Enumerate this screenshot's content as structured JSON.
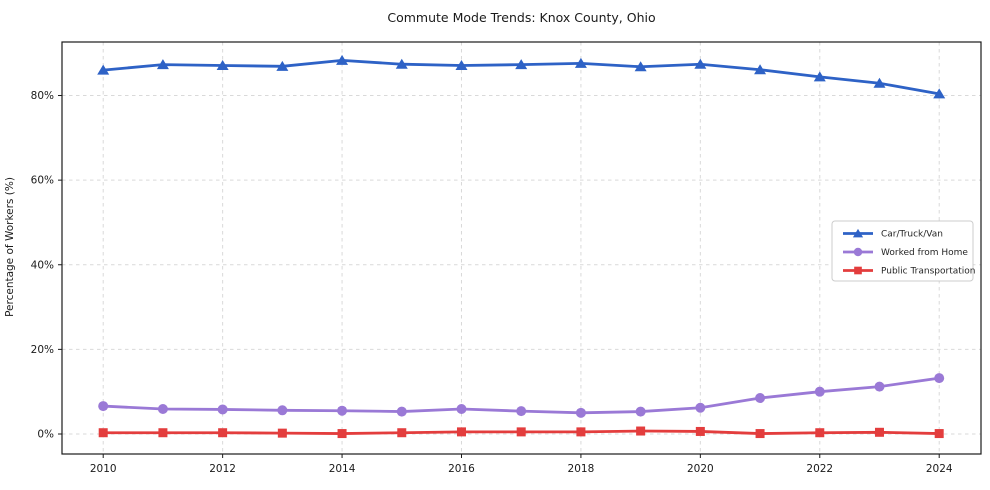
{
  "chart_data": {
    "type": "line",
    "title": "Commute Mode Trends: Knox County, Ohio",
    "xlabel": "",
    "ylabel": "Percentage of Workers (%)",
    "x": [
      2010,
      2011,
      2012,
      2013,
      2014,
      2015,
      2016,
      2017,
      2018,
      2019,
      2020,
      2021,
      2022,
      2023,
      2024
    ],
    "series": [
      {
        "name": "Car/Truck/Van",
        "color": "#2e62c6",
        "marker": "triangle",
        "values": [
          86.0,
          87.3,
          87.1,
          86.9,
          88.3,
          87.4,
          87.1,
          87.3,
          87.6,
          86.8,
          87.4,
          86.1,
          84.4,
          82.9,
          80.4
        ]
      },
      {
        "name": "Worked from Home",
        "color": "#9a79d6",
        "marker": "circle",
        "values": [
          6.6,
          5.9,
          5.8,
          5.6,
          5.5,
          5.3,
          5.9,
          5.4,
          5.0,
          5.3,
          6.2,
          8.5,
          10.0,
          11.2,
          13.2
        ]
      },
      {
        "name": "Public Transportation",
        "color": "#e33d3d",
        "marker": "square",
        "values": [
          0.3,
          0.3,
          0.3,
          0.2,
          0.1,
          0.3,
          0.5,
          0.5,
          0.5,
          0.7,
          0.6,
          0.1,
          0.3,
          0.4,
          0.1
        ]
      }
    ],
    "xticks": {
      "values": [
        2010,
        2012,
        2014,
        2016,
        2018,
        2020,
        2022,
        2024
      ],
      "labels": [
        "2010",
        "2012",
        "2014",
        "2016",
        "2018",
        "2020",
        "2022",
        "2024"
      ]
    },
    "yticks": {
      "values": [
        0,
        20,
        40,
        60,
        80
      ],
      "labels": [
        "0%",
        "20%",
        "40%",
        "60%",
        "80%"
      ]
    },
    "xlim": [
      2009.31,
      2024.7
    ],
    "ylim": [
      -4.73,
      92.65
    ],
    "grid": true,
    "legend": {
      "position": "center-right"
    }
  },
  "colors": {
    "frame": "#1a1a1a",
    "grid": "#d9d9d9",
    "tick_text": "#1a1a1a",
    "legend_border": "#cccccc",
    "legend_bg": "#ffffff",
    "legend_text": "#262626"
  }
}
